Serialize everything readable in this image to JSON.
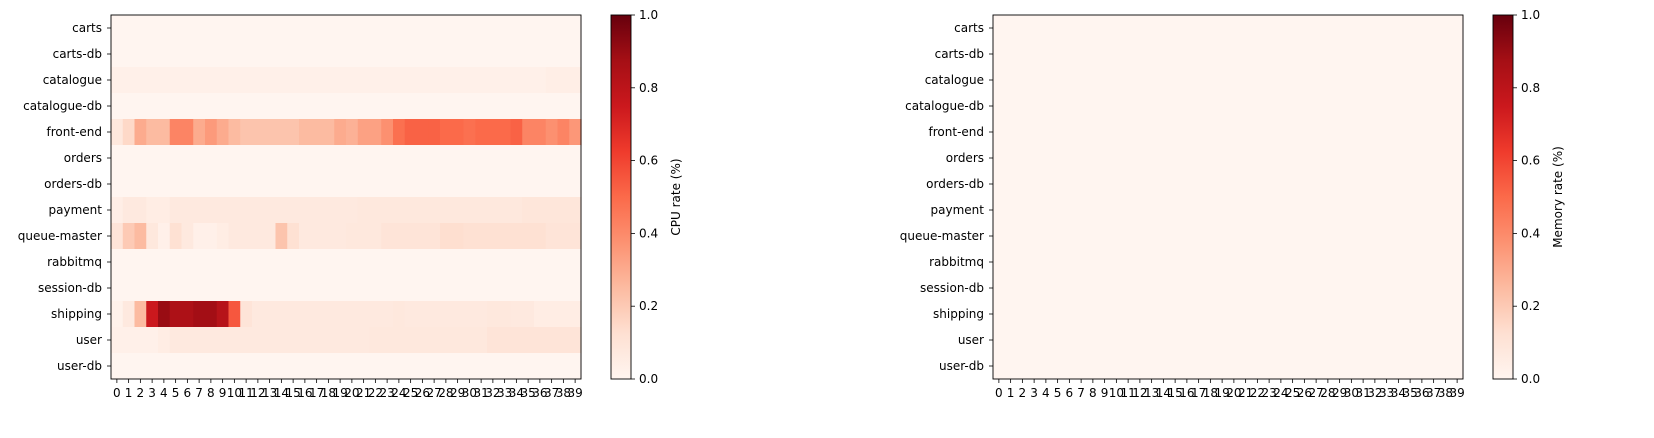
{
  "chart_data": [
    {
      "type": "heatmap",
      "colormap": "Reds",
      "rows": [
        "carts",
        "carts-db",
        "catalogue",
        "catalogue-db",
        "front-end",
        "orders",
        "orders-db",
        "payment",
        "queue-master",
        "rabbitmq",
        "session-db",
        "shipping",
        "user",
        "user-db"
      ],
      "x_ticks": [
        "0",
        "1",
        "2",
        "3",
        "4",
        "5",
        "6",
        "7",
        "8",
        "9",
        "10",
        "11",
        "12",
        "13",
        "14",
        "15",
        "16",
        "17",
        "18",
        "19",
        "20",
        "21",
        "22",
        "23",
        "24",
        "25",
        "26",
        "27",
        "28",
        "29",
        "30",
        "31",
        "32",
        "33",
        "34",
        "35",
        "36",
        "37",
        "38",
        "39"
      ],
      "values": [
        [
          0,
          0,
          0,
          0,
          0,
          0,
          0,
          0,
          0,
          0,
          0,
          0,
          0,
          0,
          0,
          0,
          0,
          0,
          0,
          0,
          0,
          0,
          0,
          0,
          0,
          0,
          0,
          0,
          0,
          0,
          0,
          0,
          0,
          0,
          0,
          0,
          0,
          0,
          0,
          0
        ],
        [
          0,
          0,
          0,
          0,
          0,
          0,
          0,
          0,
          0,
          0,
          0,
          0,
          0,
          0,
          0,
          0,
          0,
          0,
          0,
          0,
          0,
          0,
          0,
          0,
          0,
          0,
          0,
          0,
          0,
          0,
          0,
          0,
          0,
          0,
          0,
          0,
          0,
          0,
          0,
          0
        ],
        [
          0.03,
          0.03,
          0.03,
          0.03,
          0.03,
          0.03,
          0.03,
          0.03,
          0.03,
          0.03,
          0.03,
          0.03,
          0.03,
          0.03,
          0.03,
          0.03,
          0.03,
          0.03,
          0.03,
          0.03,
          0.03,
          0.03,
          0.03,
          0.03,
          0.03,
          0.03,
          0.03,
          0.03,
          0.03,
          0.03,
          0.03,
          0.03,
          0.03,
          0.03,
          0.03,
          0.03,
          0.03,
          0.04,
          0.04,
          0.04
        ],
        [
          0,
          0,
          0,
          0,
          0,
          0,
          0,
          0,
          0,
          0,
          0,
          0,
          0,
          0,
          0,
          0,
          0,
          0,
          0,
          0,
          0,
          0,
          0,
          0,
          0,
          0,
          0,
          0,
          0,
          0,
          0,
          0,
          0,
          0,
          0,
          0,
          0,
          0,
          0,
          0
        ],
        [
          0.08,
          0.15,
          0.3,
          0.25,
          0.25,
          0.42,
          0.42,
          0.3,
          0.35,
          0.3,
          0.25,
          0.22,
          0.22,
          0.22,
          0.22,
          0.22,
          0.25,
          0.25,
          0.25,
          0.3,
          0.28,
          0.33,
          0.33,
          0.38,
          0.48,
          0.52,
          0.52,
          0.52,
          0.5,
          0.5,
          0.48,
          0.5,
          0.5,
          0.5,
          0.52,
          0.42,
          0.42,
          0.38,
          0.42,
          0.36
        ],
        [
          0,
          0,
          0,
          0,
          0,
          0,
          0,
          0,
          0,
          0,
          0,
          0,
          0,
          0,
          0,
          0,
          0,
          0,
          0,
          0,
          0,
          0,
          0,
          0,
          0,
          0,
          0,
          0,
          0,
          0,
          0,
          0,
          0,
          0,
          0,
          0,
          0,
          0,
          0,
          0
        ],
        [
          0,
          0,
          0,
          0,
          0,
          0,
          0,
          0,
          0,
          0,
          0,
          0,
          0,
          0,
          0,
          0,
          0,
          0,
          0,
          0,
          0,
          0,
          0,
          0,
          0,
          0,
          0,
          0,
          0,
          0,
          0,
          0,
          0,
          0,
          0,
          0,
          0,
          0,
          0,
          0
        ],
        [
          0.04,
          0.07,
          0.07,
          0.05,
          0.05,
          0.07,
          0.07,
          0.07,
          0.07,
          0.07,
          0.07,
          0.07,
          0.07,
          0.07,
          0.07,
          0.07,
          0.07,
          0.07,
          0.07,
          0.07,
          0.07,
          0.08,
          0.08,
          0.08,
          0.08,
          0.08,
          0.08,
          0.08,
          0.08,
          0.08,
          0.08,
          0.08,
          0.08,
          0.08,
          0.08,
          0.09,
          0.09,
          0.09,
          0.09,
          0.09
        ],
        [
          0.1,
          0.2,
          0.25,
          0.08,
          0.03,
          0.12,
          0.07,
          0.03,
          0.03,
          0.05,
          0.07,
          0.07,
          0.07,
          0.07,
          0.22,
          0.12,
          0.07,
          0.07,
          0.07,
          0.07,
          0.08,
          0.08,
          0.08,
          0.1,
          0.1,
          0.1,
          0.1,
          0.1,
          0.13,
          0.13,
          0.12,
          0.12,
          0.12,
          0.12,
          0.12,
          0.12,
          0.12,
          0.1,
          0.1,
          0.1
        ],
        [
          0,
          0,
          0,
          0,
          0,
          0,
          0,
          0,
          0,
          0,
          0,
          0,
          0,
          0,
          0,
          0,
          0,
          0,
          0,
          0,
          0,
          0,
          0,
          0,
          0,
          0,
          0,
          0,
          0,
          0,
          0,
          0,
          0,
          0,
          0,
          0,
          0,
          0,
          0,
          0
        ],
        [
          0,
          0,
          0,
          0,
          0,
          0,
          0,
          0,
          0,
          0,
          0,
          0,
          0,
          0,
          0,
          0,
          0,
          0,
          0,
          0,
          0,
          0,
          0,
          0,
          0,
          0,
          0,
          0,
          0,
          0,
          0,
          0,
          0,
          0,
          0,
          0,
          0,
          0,
          0,
          0
        ],
        [
          0.02,
          0.07,
          0.25,
          0.75,
          0.9,
          0.85,
          0.85,
          0.88,
          0.88,
          0.82,
          0.55,
          0.1,
          0.07,
          0.07,
          0.07,
          0.07,
          0.07,
          0.07,
          0.07,
          0.07,
          0.07,
          0.07,
          0.07,
          0.07,
          0.08,
          0.07,
          0.07,
          0.07,
          0.07,
          0.07,
          0.07,
          0.07,
          0.08,
          0.08,
          0.07,
          0.07,
          0.05,
          0.05,
          0.05,
          0.05
        ],
        [
          0.03,
          0.03,
          0.03,
          0.03,
          0.05,
          0.07,
          0.07,
          0.07,
          0.07,
          0.07,
          0.07,
          0.07,
          0.07,
          0.07,
          0.07,
          0.07,
          0.07,
          0.07,
          0.07,
          0.07,
          0.07,
          0.07,
          0.08,
          0.08,
          0.08,
          0.08,
          0.08,
          0.08,
          0.08,
          0.08,
          0.08,
          0.08,
          0.1,
          0.1,
          0.1,
          0.1,
          0.1,
          0.1,
          0.1,
          0.1
        ],
        [
          0,
          0,
          0,
          0,
          0,
          0,
          0,
          0,
          0,
          0,
          0,
          0,
          0,
          0,
          0,
          0,
          0,
          0,
          0,
          0,
          0,
          0,
          0,
          0,
          0,
          0,
          0,
          0,
          0,
          0,
          0,
          0,
          0,
          0,
          0,
          0,
          0,
          0,
          0,
          0
        ]
      ],
      "colorbar": {
        "label": "CPU rate (%)",
        "range": [
          0,
          1
        ],
        "ticks": [
          "0.0",
          "0.2",
          "0.4",
          "0.6",
          "0.8",
          "1.0"
        ]
      }
    },
    {
      "type": "heatmap",
      "colormap": "Reds",
      "rows": [
        "carts",
        "carts-db",
        "catalogue",
        "catalogue-db",
        "front-end",
        "orders",
        "orders-db",
        "payment",
        "queue-master",
        "rabbitmq",
        "session-db",
        "shipping",
        "user",
        "user-db"
      ],
      "x_ticks": [
        "0",
        "1",
        "2",
        "3",
        "4",
        "5",
        "6",
        "7",
        "8",
        "9",
        "10",
        "11",
        "12",
        "13",
        "14",
        "15",
        "16",
        "17",
        "18",
        "19",
        "20",
        "21",
        "22",
        "23",
        "24",
        "25",
        "26",
        "27",
        "28",
        "29",
        "30",
        "31",
        "32",
        "33",
        "34",
        "35",
        "36",
        "37",
        "38",
        "39"
      ],
      "values": "all-zero",
      "colorbar": {
        "label": "Memory rate (%)",
        "range": [
          0,
          1
        ],
        "ticks": [
          "0.0",
          "0.2",
          "0.4",
          "0.6",
          "0.8",
          "1.0"
        ]
      }
    }
  ]
}
